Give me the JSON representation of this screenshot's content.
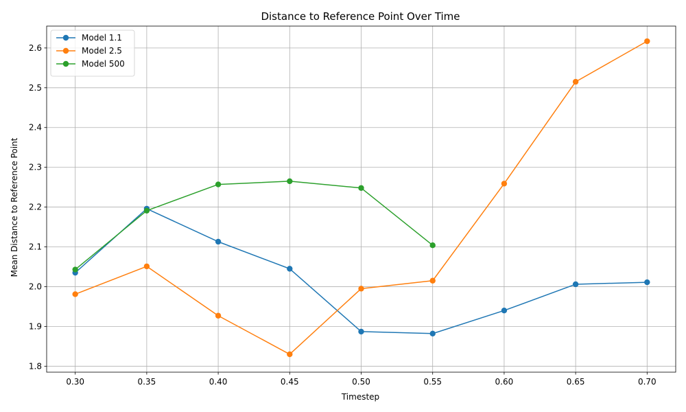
{
  "chart_data": {
    "type": "line",
    "title": "Distance to Reference Point Over Time",
    "xlabel": "Timestep",
    "ylabel": "Mean Distance to Reference Point",
    "xlim": [
      0.28,
      0.72
    ],
    "ylim": [
      1.785,
      2.655
    ],
    "xticks": [
      0.3,
      0.35,
      0.4,
      0.45,
      0.5,
      0.55,
      0.6,
      0.65,
      0.7
    ],
    "xtick_labels": [
      "0.30",
      "0.35",
      "0.40",
      "0.45",
      "0.50",
      "0.55",
      "0.60",
      "0.65",
      "0.70"
    ],
    "yticks": [
      1.8,
      1.9,
      2.0,
      2.1,
      2.2,
      2.3,
      2.4,
      2.5,
      2.6
    ],
    "ytick_labels": [
      "1.8",
      "1.9",
      "2.0",
      "2.1",
      "2.2",
      "2.3",
      "2.4",
      "2.5",
      "2.6"
    ],
    "grid": true,
    "legend": "top-left",
    "series": [
      {
        "name": "Model 1.1",
        "color": "#1f77b4",
        "x": [
          0.3,
          0.35,
          0.4,
          0.45,
          0.5,
          0.55,
          0.6,
          0.65,
          0.7
        ],
        "y": [
          2.035,
          2.196,
          2.113,
          2.045,
          1.887,
          1.882,
          1.94,
          2.006,
          2.011
        ]
      },
      {
        "name": "Model 2.5",
        "color": "#ff7f0e",
        "x": [
          0.3,
          0.35,
          0.4,
          0.45,
          0.5,
          0.55,
          0.6,
          0.65,
          0.7
        ],
        "y": [
          1.981,
          2.051,
          1.927,
          1.83,
          1.995,
          2.015,
          2.259,
          2.515,
          2.617
        ]
      },
      {
        "name": "Model 500",
        "color": "#2ca02c",
        "x": [
          0.3,
          0.35,
          0.4,
          0.45,
          0.5,
          0.55
        ],
        "y": [
          2.043,
          2.191,
          2.257,
          2.265,
          2.248,
          2.104
        ]
      }
    ]
  }
}
